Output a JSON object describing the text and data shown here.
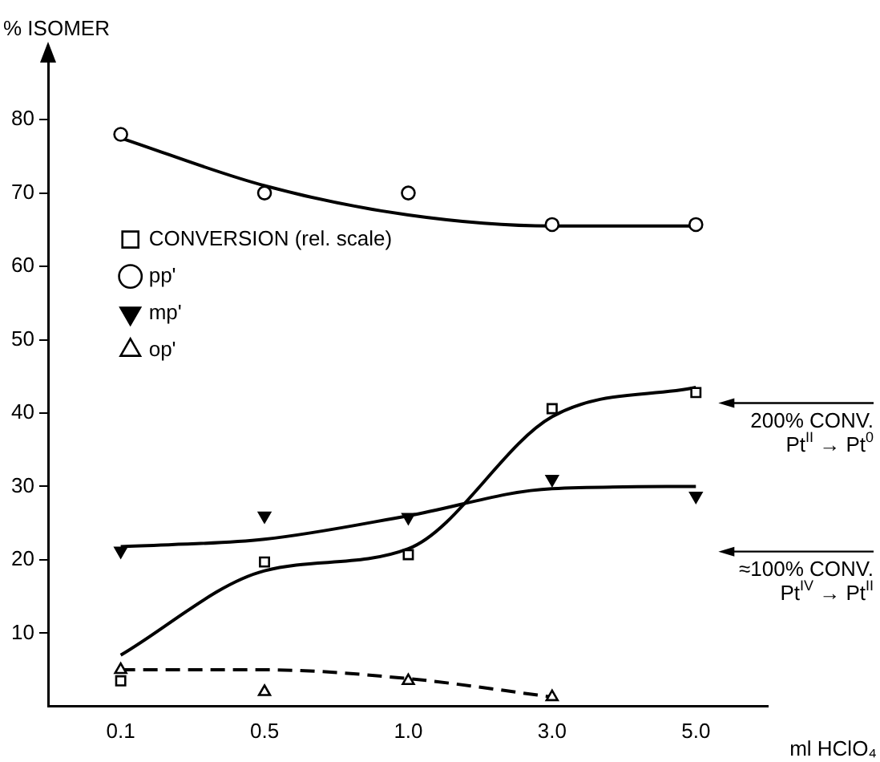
{
  "chart_data": {
    "type": "line",
    "xlabel": "ml HClO₄",
    "ylabel": "% ISOMER",
    "categories": [
      "0.1",
      "0.5",
      "1.0",
      "3.0",
      "5.0"
    ],
    "ylim": [
      0,
      88
    ],
    "yticks": [
      10,
      20,
      30,
      40,
      50,
      60,
      70,
      80
    ],
    "grid": false,
    "legend": "left",
    "series": [
      {
        "name": "CONVERSION (rel. scale)",
        "type": "scatter",
        "marker": "square",
        "color": "#000000",
        "x": [
          "0.1",
          "0.5",
          "1.0",
          "3.0",
          "5.0"
        ],
        "values": [
          3.5,
          19.7,
          20.7,
          40.6,
          42.8
        ]
      },
      {
        "name": "pp'",
        "type": "scatter",
        "marker": "circle",
        "color": "#000000",
        "x": [
          "0.1",
          "0.5",
          "1.0",
          "3.0",
          "5.0"
        ],
        "values": [
          78,
          70,
          70,
          65.7,
          65.7
        ]
      },
      {
        "name": "mp'",
        "type": "scatter",
        "marker": "triangle_down",
        "color": "#000000",
        "x": [
          "0.1",
          "0.5",
          "1.0",
          "3.0",
          "5.0"
        ],
        "values": [
          21.2,
          26,
          25.8,
          31,
          28.7
        ]
      },
      {
        "name": "op'",
        "type": "scatter",
        "marker": "triangle",
        "color": "#000000",
        "x": [
          "0.1",
          "0.5",
          "1.0",
          "3.0",
          "5.0"
        ],
        "values": [
          5,
          2,
          3.5,
          1.3,
          null
        ]
      },
      {
        "marker": "none",
        "line_style": "solid",
        "color": "#000000",
        "values": [
          7,
          18.5,
          21.5,
          39.5,
          43.5
        ]
      },
      {
        "marker": "none",
        "line_style": "solid",
        "color": "#000000",
        "values": [
          77.5,
          71,
          67,
          65.5,
          65.5
        ]
      },
      {
        "marker": "none",
        "line_style": "solid",
        "color": "#000000",
        "values": [
          21.8,
          22.8,
          26,
          29.7,
          30
        ]
      },
      {
        "marker": "none",
        "line_style": "dashed",
        "color": "#000000",
        "values": [
          5,
          5,
          3.8,
          1.3,
          null
        ]
      }
    ],
    "annotations": [
      "200% CONV.\nPt$^{II}$ → Pt$^{0}$",
      "≈100% CONV.\nPt$^{IV}$ → Pt$^{II}$"
    ]
  }
}
